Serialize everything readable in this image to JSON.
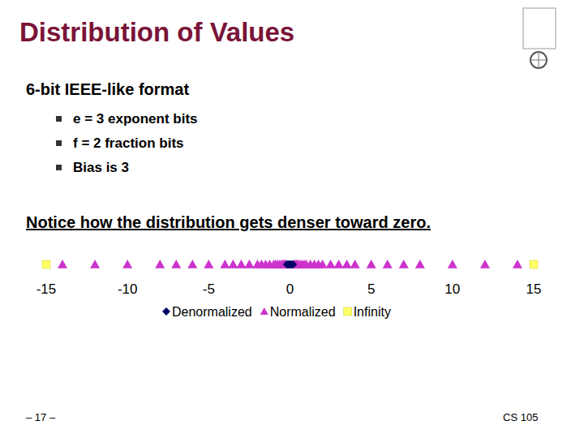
{
  "slide": {
    "title": "Distribution of Values",
    "subtitle": "6-bit IEEE-like format",
    "bullets": [
      "e = 3 exponent bits",
      "f = 2 fraction bits",
      "Bias is 3"
    ],
    "note": "Notice how the distribution gets denser toward zero.",
    "page": "– 17 –",
    "course": "CS 105"
  },
  "chart_data": {
    "type": "strip",
    "xlim": [
      -15,
      15
    ],
    "xticks": [
      -15,
      -10,
      -5,
      0,
      5,
      10,
      15
    ],
    "grid": false,
    "tick_labels": "x",
    "legend": "bottom",
    "series": [
      {
        "name": "Denormalized",
        "color": "#000066",
        "marker": "diamond",
        "values": [
          -0.1875,
          -0.125,
          -0.0625,
          0,
          0.0625,
          0.125,
          0.1875
        ]
      },
      {
        "name": "Normalized",
        "color": "#cc33cc",
        "marker": "triangle",
        "values": [
          -14,
          -12,
          -10,
          -8,
          -7,
          -6,
          -5,
          -4,
          -3.5,
          -3,
          -2.5,
          -2,
          -1.75,
          -1.5,
          -1.25,
          -1,
          -0.875,
          -0.75,
          -0.625,
          -0.5,
          -0.4375,
          -0.375,
          -0.3125,
          -0.25,
          0.25,
          0.3125,
          0.375,
          0.4375,
          0.5,
          0.625,
          0.75,
          0.875,
          1,
          1.25,
          1.5,
          1.75,
          2,
          2.5,
          3,
          3.5,
          4,
          5,
          6,
          7,
          8,
          10,
          12,
          14
        ]
      },
      {
        "name": "Infinity",
        "color": "#ffff66",
        "marker": "square",
        "values": [
          -15,
          15
        ]
      }
    ]
  }
}
